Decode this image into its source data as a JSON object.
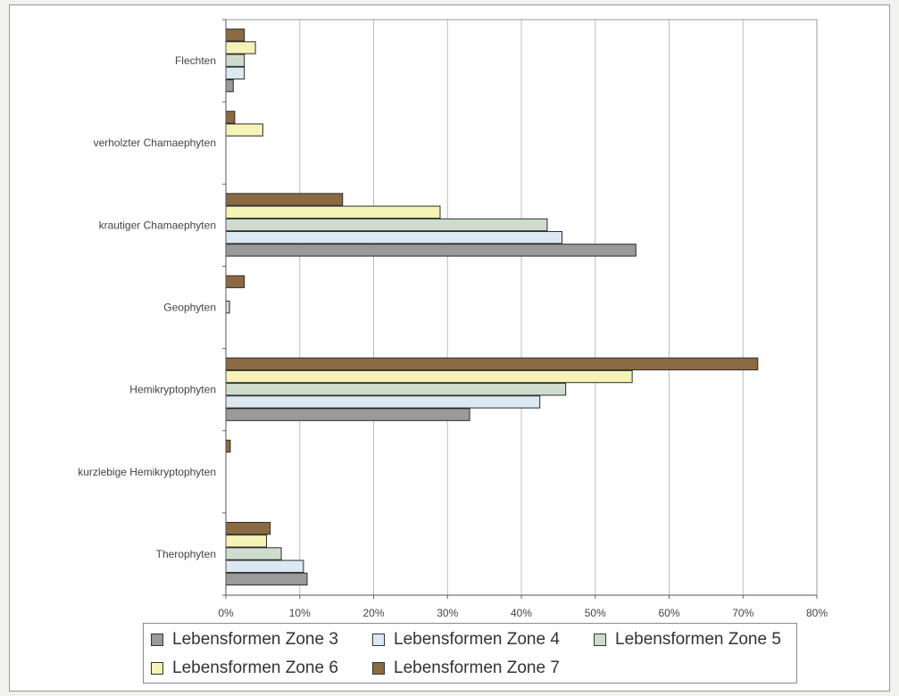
{
  "chart_data": {
    "type": "bar",
    "orientation": "horizontal",
    "categories": [
      "Flechten",
      "verholzter Chamaephyten",
      "krautiger Chamaephyten",
      "Geophyten",
      "Hemikryptophyten",
      "kurzlebige Hemikryptophyten",
      "Therophyten"
    ],
    "series": [
      {
        "name": "Lebensformen Zone 3",
        "color": "#9a9a9a",
        "values": [
          1,
          0,
          55.5,
          0,
          33,
          0,
          11
        ]
      },
      {
        "name": "Lebensformen Zone 4",
        "color": "#dce8f2",
        "values": [
          2.5,
          0,
          45.5,
          0,
          42.5,
          0,
          10.5
        ]
      },
      {
        "name": "Lebensformen Zone 5",
        "color": "#cfdccd",
        "values": [
          2.5,
          0,
          43.5,
          0.5,
          46,
          0,
          7.5
        ]
      },
      {
        "name": "Lebensformen Zone 6",
        "color": "#f5f3b6",
        "values": [
          4,
          5,
          29,
          0,
          55,
          0,
          5.5
        ]
      },
      {
        "name": "Lebensformen Zone 7",
        "color": "#8b6a43",
        "values": [
          2.5,
          1.2,
          15.8,
          2.5,
          72,
          0.6,
          6
        ]
      }
    ],
    "xlim": [
      0,
      80
    ],
    "x_ticks": [
      "0%",
      "10%",
      "20%",
      "30%",
      "40%",
      "50%",
      "60%",
      "70%",
      "80%"
    ],
    "grid": true,
    "legend_position": "bottom"
  }
}
